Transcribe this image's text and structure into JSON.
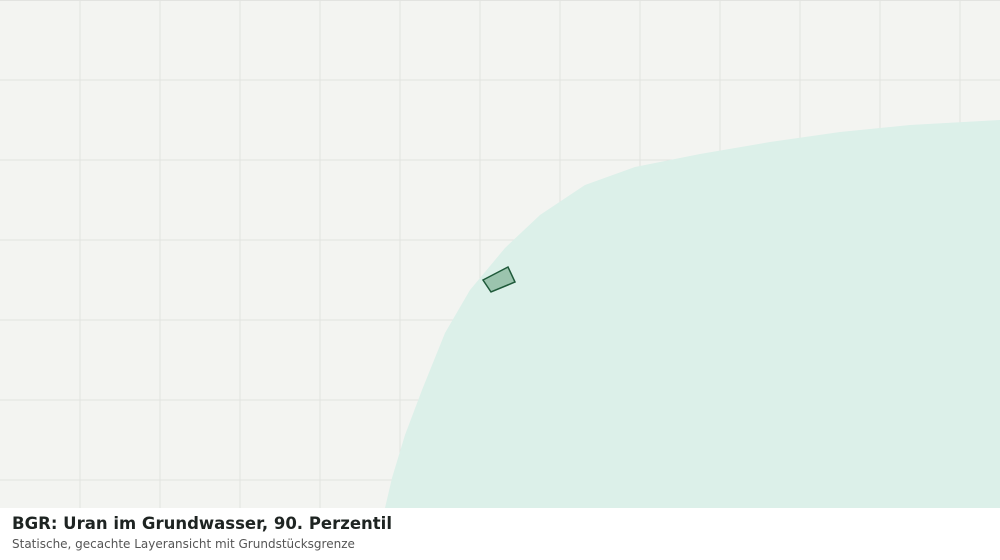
{
  "caption": {
    "title": "BGR: Uran im Grundwasser, 90. Perzentil",
    "subtitle": "Statische, gecachte Layeransicht mit Grundstücksgrenze"
  }
}
